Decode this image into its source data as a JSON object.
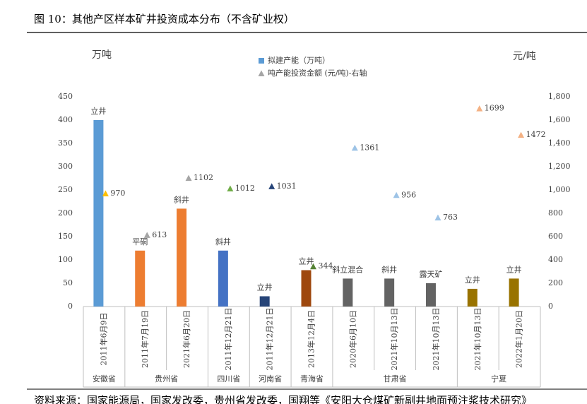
{
  "chart_data": {
    "type": "bar",
    "title": "图 10：其他产区样本矿井投资成本分布（不含矿业权）",
    "y_label": "万吨",
    "y2_label": "元/吨",
    "source": "资料来源：国家能源局，国家发改委，贵州省发改委，国翔等《安阳大仓煤矿新副井地面预注浆技术研究》",
    "categories": [
      "2011年6月9日",
      "2011年7月19日",
      "2021年6月20日",
      "2011年12月21日",
      "2011年12月21日",
      "2013年12月4日",
      "2020年6月10日",
      "2021年10月13日",
      "2021年10月13日",
      "2021年10月13日",
      "2022年1月20日"
    ],
    "groups": [
      "安徽省",
      "贵州省",
      "贵州省",
      "四川省",
      "河南省",
      "青海省",
      "甘肃省",
      "甘肃省",
      "甘肃省",
      "宁夏",
      "宁夏"
    ],
    "ylim": [
      0,
      450
    ],
    "yticks": [
      0,
      50,
      100,
      150,
      200,
      250,
      300,
      350,
      400,
      450
    ],
    "y2lim": [
      0,
      1800
    ],
    "y2ticks": [
      0,
      200,
      400,
      600,
      800,
      {
        "value": 1000,
        "label": "1,000"
      },
      {
        "value": 1200,
        "label": "1,200"
      },
      {
        "value": 1400,
        "label": "1,400"
      },
      {
        "value": 1600,
        "label": "1,600"
      },
      {
        "value": 1800,
        "label": "1,800"
      }
    ],
    "series": [
      {
        "name": "拟建产能（万吨）",
        "type": "bar",
        "color": "#5b9bd5",
        "values": [
          400,
          120,
          210,
          120,
          22,
          78,
          60,
          60,
          50,
          38,
          60
        ],
        "colors": [
          "#5b9bd5",
          "#ed7d31",
          "#ed7d31",
          "#4472c4",
          "#264478",
          "#9e480e",
          "#636363",
          "#636363",
          "#636363",
          "#997300",
          "#997300"
        ],
        "bar_labels": [
          "立井",
          "平硐",
          "斜井",
          "斜井",
          "立井",
          "立井",
          "斜立混合",
          "斜井",
          "露天矿",
          "立井",
          "立井"
        ]
      },
      {
        "name": "吨产能投资金额 (元/吨)-右轴",
        "type": "scatter",
        "axis": "y2",
        "color": "#a5a5a5",
        "values": [
          970,
          613,
          1102,
          1012,
          1031,
          344,
          1361,
          956,
          763,
          1699,
          1472
        ],
        "colors": [
          "#ffc000",
          "#a5a5a5",
          "#a5a5a5",
          "#70ad47",
          "#264478",
          "#548235",
          "#9dc3e6",
          "#9dc3e6",
          "#9dc3e6",
          "#f4b183",
          "#f4b183"
        ]
      }
    ]
  }
}
